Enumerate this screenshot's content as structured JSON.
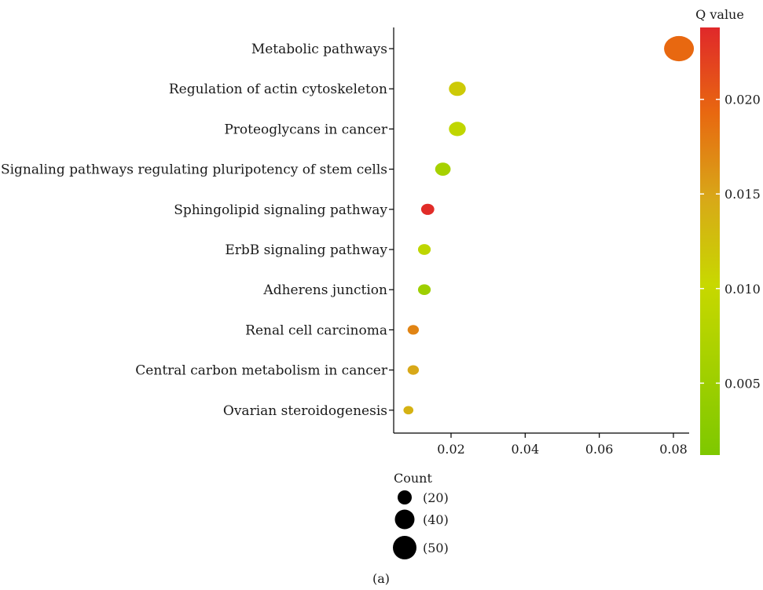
{
  "chart_data": {
    "type": "scatter",
    "title": "",
    "xlabel": "",
    "ylabel": "",
    "xlim": [
      0.005,
      0.0835
    ],
    "x_ticks": [
      0.02,
      0.04,
      0.06,
      0.08
    ],
    "x_tick_labels": [
      "0.02",
      "0.04",
      "0.06",
      "0.08"
    ],
    "categories": [
      "Metabolic pathways",
      "Regulation of actin cytoskeleton",
      "Proteoglycans in cancer",
      "Signaling pathways regulating pluripotency of stem cells",
      "Sphingolipid signaling pathway",
      "ErbB signaling pathway",
      "Adherens junction",
      "Renal cell carcinoma",
      "Central carbon metabolism in cancer",
      "Ovarian steroidogenesis"
    ],
    "points": [
      {
        "category": "Metabolic pathways",
        "x": 0.0815,
        "count": 50,
        "q": 0.0195
      },
      {
        "category": "Regulation of actin cytoskeleton",
        "x": 0.0217,
        "count": 22,
        "q": 0.0115
      },
      {
        "category": "Proteoglycans in cancer",
        "x": 0.0217,
        "count": 22,
        "q": 0.009
      },
      {
        "category": "Signaling pathways regulating pluripotency of stem cells",
        "x": 0.0178,
        "count": 19,
        "q": 0.006
      },
      {
        "category": "Sphingolipid signaling pathway",
        "x": 0.0137,
        "count": 14,
        "q": 0.0235
      },
      {
        "category": "ErbB signaling pathway",
        "x": 0.0128,
        "count": 13,
        "q": 0.0088
      },
      {
        "category": "Adherens junction",
        "x": 0.0128,
        "count": 13,
        "q": 0.005
      },
      {
        "category": "Renal cell carcinoma",
        "x": 0.0098,
        "count": 10,
        "q": 0.0175
      },
      {
        "category": "Central carbon metabolism in cancer",
        "x": 0.0098,
        "count": 10,
        "q": 0.015
      },
      {
        "category": "Ovarian steroidogenesis",
        "x": 0.0085,
        "count": 7,
        "q": 0.014
      }
    ],
    "colorbar": {
      "title": "Q value",
      "range": [
        0.0012,
        0.0238
      ],
      "ticks": [
        0.005,
        0.01,
        0.015,
        0.02
      ],
      "tick_labels": [
        "0.005",
        "0.010",
        "0.015",
        "0.020"
      ],
      "low_color": "#7ec800",
      "mid_color": "#c8d800",
      "high_color": "#e0282a"
    },
    "size_legend": {
      "title": "Count",
      "entries": [
        {
          "value": 20,
          "label": "(20)"
        },
        {
          "value": 40,
          "label": "(40)"
        },
        {
          "value": 50,
          "label": "(50)"
        }
      ]
    },
    "caption": "(a)",
    "grid": false,
    "legend_placement": "bottom-left (size), right (color)"
  }
}
